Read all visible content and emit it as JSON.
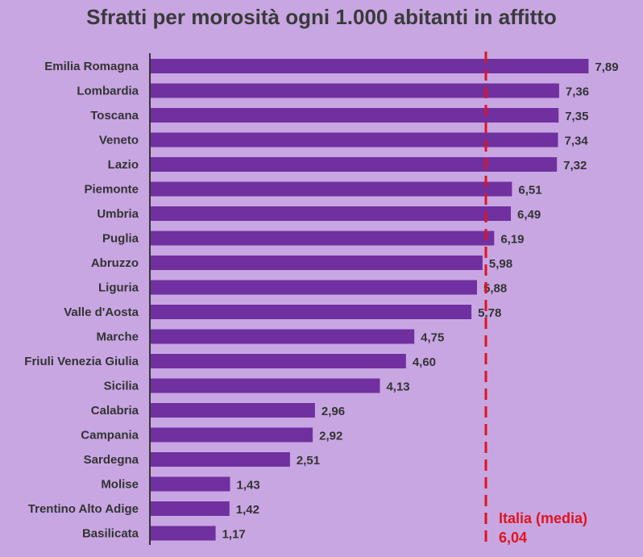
{
  "chart_data": {
    "type": "bar",
    "orientation": "horizontal",
    "title": "Sfratti per morosità ogni 1.000 abitanti in affitto",
    "categories": [
      "Emilia Romagna",
      "Lombardia",
      "Toscana",
      "Veneto",
      "Lazio",
      "Piemonte",
      "Umbria",
      "Puglia",
      "Abruzzo",
      "Liguria",
      "Valle d'Aosta",
      "Marche",
      "Friuli Venezia Giulia",
      "Sicilia",
      "Calabria",
      "Campania",
      "Sardegna",
      "Molise",
      "Trentino Alto Adige",
      "Basilicata"
    ],
    "values": [
      7.89,
      7.36,
      7.35,
      7.34,
      7.32,
      6.51,
      6.49,
      6.19,
      5.98,
      5.88,
      5.78,
      4.75,
      4.6,
      4.13,
      2.96,
      2.92,
      2.51,
      1.43,
      1.42,
      1.17
    ],
    "value_labels": [
      "7,89",
      "7,36",
      "7,35",
      "7,34",
      "7,32",
      "6,51",
      "6,49",
      "6,19",
      "5,98",
      "5,88",
      "5,78",
      "4,75",
      "4,60",
      "4,13",
      "2,96",
      "2,92",
      "2,51",
      "1,43",
      "1,42",
      "1,17"
    ],
    "xlim": [
      0,
      8.0
    ],
    "grid": false,
    "reference_line": {
      "value": 6.04,
      "label": "Italia (media)",
      "value_label": "6,04",
      "color": "#e0141e",
      "style": "dashed"
    },
    "colors": {
      "background": "#c8a6e2",
      "bar": "#7030a0",
      "axis": "#333333",
      "text": "#333333"
    }
  }
}
